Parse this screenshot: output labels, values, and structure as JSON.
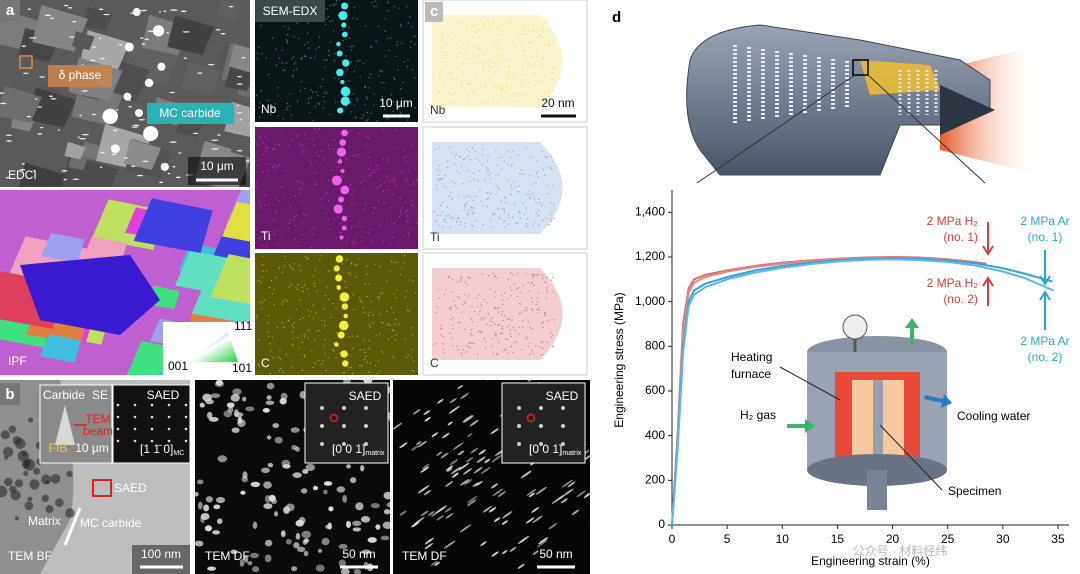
{
  "panels": {
    "a": {
      "label": "a",
      "edci": {
        "phase": "δ phase",
        "carbide": "MC carbide",
        "mode": "EDCI",
        "scale": "10 μm"
      },
      "ipf": {
        "mode": "IPF",
        "top": "111",
        "left": "001",
        "right": "101"
      }
    },
    "edx": {
      "title": "SEM-EDX",
      "scale": "10 μm",
      "elements": [
        "Nb",
        "Ti",
        "C"
      ]
    },
    "c": {
      "label": "c",
      "scale": "20 nm",
      "elements": [
        "Nb",
        "Ti",
        "C"
      ]
    },
    "b": {
      "label": "b",
      "bf": {
        "inset_left": [
          "Carbide",
          "SE",
          "TEM",
          "beam",
          "FIB",
          "10 μm"
        ],
        "inset_right": {
          "title": "SAED",
          "zone": "[1 1̄ 0]",
          "sub": "MC"
        },
        "saed": "SAED",
        "matrix": "Matrix",
        "carbide": "MC carbide",
        "mode": "TEM BF",
        "scale": "100 nm"
      },
      "df": [
        {
          "title": "SAED",
          "zone": "[0 0 1]",
          "sub": "matrix",
          "mode": "TEM DF",
          "scale": "50 nm"
        },
        {
          "title": "SAED",
          "zone": "[0 0 1]",
          "sub": "matrix",
          "mode": "TEM DF",
          "scale": "50 nm"
        }
      ]
    },
    "d": {
      "label": "d"
    }
  },
  "chart_data": {
    "type": "line",
    "xlabel": "Engineering strain (%)",
    "ylabel": "Engineering stress (MPa)",
    "xlim": [
      0,
      36
    ],
    "ylim": [
      0,
      1500
    ],
    "xticks": [
      0,
      5,
      10,
      15,
      20,
      25,
      30,
      35
    ],
    "yticks": [
      0,
      200,
      400,
      600,
      800,
      {
        "value": 1000,
        "label": "1,000"
      },
      {
        "value": 1200,
        "label": "1,200"
      },
      {
        "value": 1400,
        "label": "1,400"
      }
    ],
    "series": [
      {
        "color": "#d9706f",
        "x": [
          0,
          0.5,
          1,
          1.5,
          2,
          3,
          5,
          7.5,
          10,
          12.5,
          15,
          17.5,
          20,
          22.5,
          25,
          27,
          28.5
        ],
        "values": [
          0,
          400,
          900,
          1060,
          1100,
          1120,
          1140,
          1160,
          1175,
          1185,
          1192,
          1198,
          1200,
          1198,
          1190,
          1180,
          1170
        ]
      },
      {
        "color": "#e08a88",
        "x": [
          0,
          0.5,
          1,
          1.5,
          2,
          3,
          5,
          7.5,
          10,
          12.5,
          15,
          17.5,
          20,
          22.5,
          25,
          27,
          28.3
        ],
        "values": [
          0,
          380,
          860,
          1040,
          1085,
          1110,
          1135,
          1155,
          1170,
          1182,
          1190,
          1195,
          1198,
          1195,
          1188,
          1176,
          1165
        ]
      },
      {
        "color": "#3aa0d8",
        "x": [
          0,
          0.5,
          1,
          1.5,
          2,
          3,
          5,
          7.5,
          10,
          12.5,
          15,
          17.5,
          20,
          22.5,
          25,
          27.5,
          30,
          32,
          34.5
        ],
        "values": [
          0,
          350,
          800,
          1000,
          1050,
          1080,
          1110,
          1140,
          1160,
          1175,
          1185,
          1192,
          1195,
          1192,
          1185,
          1172,
          1150,
          1125,
          1090
        ]
      },
      {
        "color": "#5ab8e6",
        "x": [
          0,
          0.5,
          1,
          1.5,
          2,
          3,
          5,
          7.5,
          10,
          12.5,
          15,
          17.5,
          20,
          22.5,
          25,
          27.5,
          30,
          32,
          34.6
        ],
        "values": [
          0,
          330,
          770,
          980,
          1030,
          1065,
          1100,
          1130,
          1152,
          1168,
          1180,
          1187,
          1190,
          1186,
          1178,
          1162,
          1135,
          1105,
          1050
        ]
      }
    ],
    "annotations": [
      {
        "lines": [
          "2 MPa H₂",
          "(no. 1)"
        ],
        "color": "#d0413e"
      },
      {
        "lines": [
          "2 MPa H₂",
          "(no. 2)"
        ],
        "color": "#d0413e"
      },
      {
        "lines": [
          "2 MPa Ar",
          "(no. 1)"
        ],
        "color": "#29a9c9"
      },
      {
        "lines": [
          "2 MPa Ar",
          "(no. 2)"
        ],
        "color": "#29a9c9"
      }
    ]
  },
  "inset": {
    "furnace": [
      "Heating",
      "furnace"
    ],
    "gas": "H₂ gas",
    "water": "Cooling water",
    "specimen": "Specimen"
  },
  "watermark": "公众号 · 材料经纬"
}
